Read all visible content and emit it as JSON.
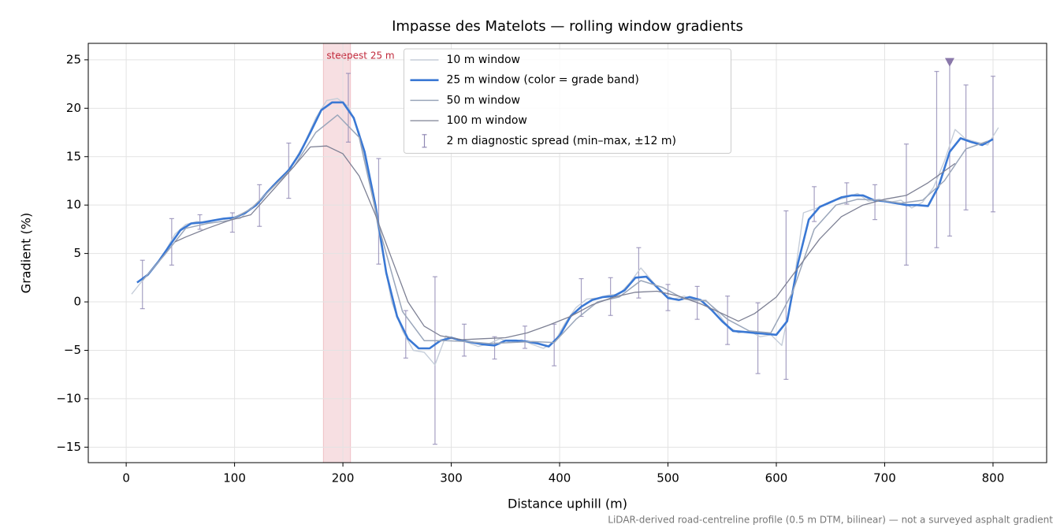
{
  "chart_data": {
    "type": "line",
    "title": "Impasse des Matelots — rolling window gradients",
    "xlabel": "Distance uphill (m)",
    "ylabel": "Gradient (%)",
    "footnote": "LiDAR-derived road-centreline profile (0.5 m DTM, bilinear) — not a surveyed asphalt gradient",
    "xlim": [
      -35,
      849.5
    ],
    "ylim": [
      -16.6,
      26.7
    ],
    "xticks": [
      0,
      100,
      200,
      300,
      400,
      500,
      600,
      700,
      800
    ],
    "yticks": [
      {
        "value": -15,
        "label": "−15"
      },
      {
        "value": -10,
        "label": "−10"
      },
      {
        "value": -5,
        "label": "−5"
      },
      0,
      5,
      10,
      15,
      20,
      25
    ],
    "grid": true,
    "legend": "upper center",
    "highlight": {
      "label": "steepest 25 m",
      "x0": 182,
      "x1": 207,
      "color": "#e8a3ab"
    },
    "series": [
      {
        "name": "10 m window",
        "color": "#c5cdd9",
        "width": 1.4,
        "x": [
          5,
          15,
          25,
          35,
          45,
          55,
          65,
          75,
          85,
          95,
          105,
          115,
          125,
          135,
          145,
          155,
          165,
          175,
          185,
          195,
          205,
          215,
          225,
          235,
          245,
          255,
          265,
          275,
          285,
          295,
          305,
          315,
          325,
          335,
          345,
          355,
          365,
          375,
          385,
          395,
          405,
          415,
          425,
          435,
          445,
          455,
          465,
          475,
          485,
          495,
          505,
          515,
          525,
          535,
          545,
          555,
          565,
          575,
          585,
          595,
          605,
          615,
          625,
          635,
          645,
          655,
          665,
          675,
          685,
          695,
          705,
          715,
          725,
          735,
          745,
          755,
          765,
          775,
          785,
          795,
          805
        ],
        "values": [
          0.8,
          2.2,
          3.5,
          5,
          7,
          8,
          8.3,
          8.2,
          8.5,
          8.6,
          8.6,
          9.6,
          10.5,
          12,
          13,
          14.5,
          16.5,
          19,
          20.8,
          21,
          20.2,
          17.5,
          12.5,
          6,
          0,
          -3,
          -5,
          -5.2,
          -6.5,
          -3.5,
          -3.8,
          -4.2,
          -4.6,
          -4.3,
          -3.8,
          -4.2,
          -3.9,
          -4.4,
          -4.8,
          -4.2,
          -2.2,
          -0.6,
          0.3,
          0.4,
          0.7,
          0.8,
          2,
          3.5,
          2.2,
          0.9,
          0.3,
          0.6,
          0.1,
          0.2,
          -1,
          -2.5,
          -3.2,
          -3,
          -3.6,
          -3.4,
          -4.5,
          1,
          9.2,
          9.6,
          10,
          10.5,
          10.8,
          11.2,
          10.4,
          10.6,
          10.3,
          10.5,
          9.7,
          10.3,
          11.8,
          14.5,
          17.8,
          16.8,
          16.5,
          16.2,
          18
        ]
      },
      {
        "name": "25 m window (color = grade band)",
        "color": "#3a78d4",
        "width": 2.6,
        "x": [
          10,
          20,
          30,
          40,
          50,
          60,
          70,
          80,
          90,
          100,
          110,
          120,
          130,
          140,
          150,
          160,
          170,
          180,
          190,
          200,
          210,
          220,
          230,
          240,
          250,
          260,
          270,
          280,
          290,
          300,
          310,
          320,
          330,
          340,
          350,
          360,
          370,
          380,
          390,
          400,
          410,
          420,
          430,
          440,
          450,
          460,
          470,
          480,
          490,
          500,
          510,
          520,
          530,
          540,
          550,
          560,
          570,
          580,
          590,
          600,
          610,
          620,
          630,
          640,
          650,
          660,
          670,
          680,
          690,
          700,
          710,
          720,
          730,
          740,
          750,
          760,
          770,
          780,
          790,
          800
        ],
        "values": [
          2,
          2.8,
          4.2,
          5.8,
          7.4,
          8.1,
          8.2,
          8.4,
          8.6,
          8.7,
          9.2,
          10,
          11.3,
          12.5,
          13.6,
          15.3,
          17.5,
          19.8,
          20.6,
          20.6,
          19,
          15.5,
          10,
          3,
          -1.5,
          -3.8,
          -4.8,
          -4.8,
          -4,
          -3.7,
          -4,
          -4.2,
          -4.4,
          -4.5,
          -4,
          -4,
          -4.1,
          -4.3,
          -4.6,
          -3.5,
          -1.5,
          -0.5,
          0.2,
          0.5,
          0.6,
          1.2,
          2.5,
          2.6,
          1.5,
          0.4,
          0.2,
          0.5,
          0.2,
          -0.8,
          -2,
          -3,
          -3.1,
          -3.2,
          -3.3,
          -3.4,
          -2,
          4,
          8.5,
          9.8,
          10.3,
          10.8,
          11,
          11,
          10.5,
          10.4,
          10.2,
          10,
          10,
          9.9,
          12,
          15.5,
          16.9,
          16.5,
          16.2,
          16.8
        ]
      },
      {
        "name": "50 m window",
        "color": "#9aa6ba",
        "width": 1.5,
        "x": [
          15,
          35,
          55,
          75,
          95,
          115,
          135,
          155,
          175,
          195,
          215,
          235,
          255,
          275,
          295,
          315,
          335,
          355,
          375,
          395,
          415,
          435,
          455,
          475,
          495,
          515,
          535,
          555,
          575,
          595,
          615,
          635,
          655,
          675,
          695,
          715,
          735,
          755,
          775,
          795
        ],
        "values": [
          2.2,
          4.8,
          7.6,
          8.1,
          8.4,
          9.6,
          11.8,
          14,
          17.5,
          19.3,
          17,
          7,
          -1,
          -4,
          -4,
          -4.1,
          -4.3,
          -4.2,
          -4.1,
          -4.2,
          -1.8,
          0,
          0.5,
          2.2,
          1.5,
          0.3,
          0.1,
          -1.8,
          -3,
          -3.2,
          1,
          7.5,
          10,
          10.6,
          10.5,
          10.2,
          10.5,
          12.5,
          15.8,
          16.6
        ]
      },
      {
        "name": "100 m window",
        "color": "#7d8094",
        "width": 1.3,
        "x": [
          45,
          55,
          75,
          95,
          115,
          135,
          155,
          170,
          185,
          200,
          215,
          230,
          245,
          260,
          275,
          290,
          310,
          330,
          350,
          370,
          390,
          410,
          430,
          450,
          470,
          490,
          510,
          530,
          550,
          565,
          580,
          600,
          620,
          640,
          660,
          680,
          700,
          720,
          740,
          765
        ],
        "values": [
          6.2,
          6.7,
          7.6,
          8.4,
          9,
          11.5,
          14,
          16,
          16.1,
          15.3,
          13,
          9,
          4.5,
          0,
          -2.5,
          -3.5,
          -3.9,
          -3.8,
          -3.7,
          -3.2,
          -2.4,
          -1.5,
          -0.3,
          0.5,
          1,
          1.1,
          0.6,
          -0.2,
          -1.2,
          -2,
          -1.2,
          0.5,
          3.5,
          6.5,
          8.8,
          10,
          10.6,
          11,
          12.3,
          14.3
        ]
      }
    ],
    "spread": {
      "name": "2 m diagnostic spread (min–max, ±12 m)",
      "color": "#9088b4",
      "x": [
        15,
        42,
        68,
        98,
        123,
        150,
        205,
        233,
        258,
        285,
        312,
        340,
        368,
        395,
        420,
        447,
        473,
        500,
        527,
        555,
        583,
        609,
        635,
        665,
        691,
        720,
        748,
        760,
        775,
        800
      ],
      "min": [
        -0.7,
        3.8,
        7.5,
        7.2,
        7.8,
        10.7,
        16.5,
        3.9,
        -5.8,
        -14.7,
        -5.6,
        -5.9,
        -4.8,
        -6.6,
        -1.5,
        -1.4,
        0.4,
        -0.9,
        -1.8,
        -4.4,
        -7.4,
        -8,
        8.3,
        10.1,
        8.5,
        3.8,
        5.6,
        6.8,
        9.5,
        9.3
      ],
      "max": [
        4.3,
        8.6,
        9,
        9.2,
        12.1,
        16.4,
        23.6,
        14.8,
        -0.9,
        2.6,
        -2.3,
        -3.6,
        -2.5,
        -2.3,
        2.4,
        2.5,
        5.6,
        1.8,
        1.6,
        0.6,
        -0.1,
        9.4,
        11.9,
        12.3,
        12.1,
        16.3,
        23.8,
        24.7,
        22.4,
        23.3
      ]
    },
    "peak_marker": {
      "x": 760,
      "y": 24.7,
      "color": "#8a78aa"
    }
  }
}
